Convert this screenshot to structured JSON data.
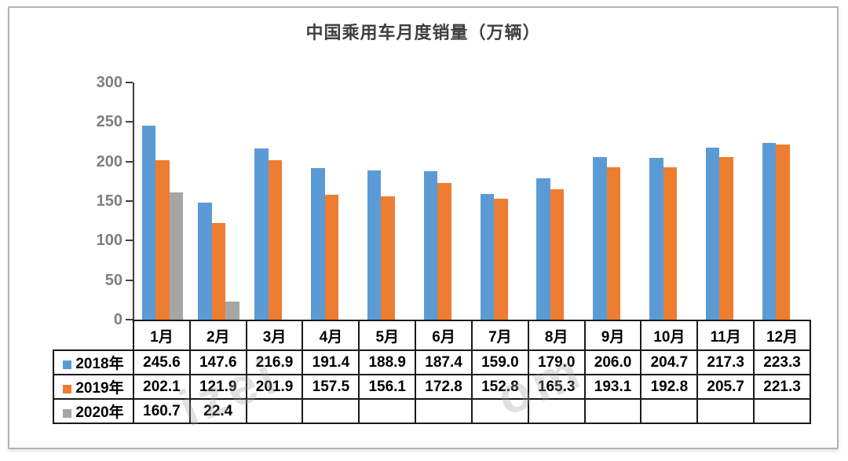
{
  "title": "中国乘用车月度销量（万辆）",
  "watermark": {
    "fragments": [
      "izei",
      "om"
    ]
  },
  "chart_data": {
    "type": "bar",
    "title": "中国乘用车月度销量（万辆）",
    "categories": [
      "1月",
      "2月",
      "3月",
      "4月",
      "5月",
      "6月",
      "7月",
      "8月",
      "9月",
      "10月",
      "11月",
      "12月"
    ],
    "series": [
      {
        "name": "2018年",
        "color": "#5B9BD5",
        "values": [
          245.6,
          147.6,
          216.9,
          191.4,
          188.9,
          187.4,
          159.0,
          179.0,
          206.0,
          204.7,
          217.3,
          223.3
        ]
      },
      {
        "name": "2019年",
        "color": "#ED7D31",
        "values": [
          202.1,
          121.9,
          201.9,
          157.5,
          156.1,
          172.8,
          152.8,
          165.3,
          193.1,
          192.8,
          205.7,
          221.3
        ]
      },
      {
        "name": "2020年",
        "color": "#A6A6A6",
        "values": [
          160.7,
          22.4,
          null,
          null,
          null,
          null,
          null,
          null,
          null,
          null,
          null,
          null
        ]
      }
    ],
    "xlabel": "",
    "ylabel": "",
    "ylim": [
      0,
      300
    ],
    "yticks": [
      0,
      50,
      100,
      150,
      200,
      250,
      300
    ],
    "grid": false,
    "legend_position": "data-table-row-headers",
    "data_table_shown": true,
    "value_format": "one-decimal"
  },
  "colors": {
    "axis": "#3f3f3f",
    "axis_label": "#7f7f7f",
    "table_border": "#1a1a1a",
    "frame_border": "#b3b3b3",
    "title": "#3f3f3f"
  }
}
